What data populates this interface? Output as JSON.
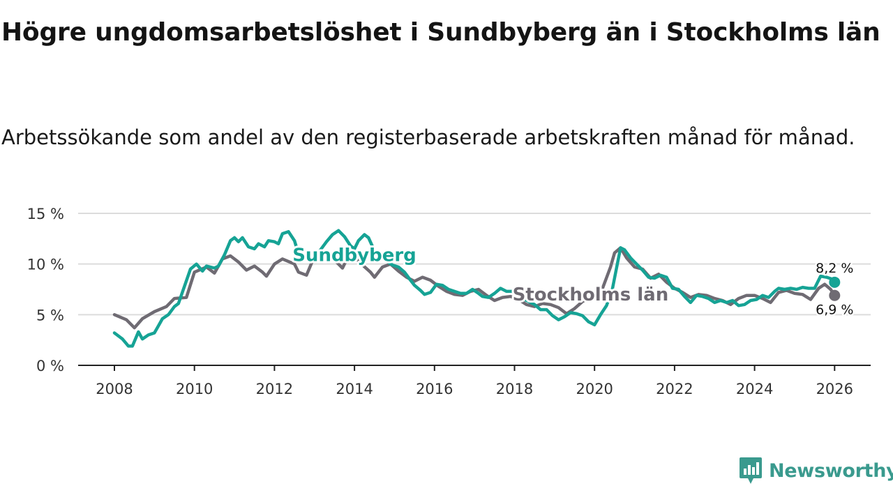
{
  "header": {
    "title": "Högre ungdomsarbetslöshet i Sundbyberg än i Stockholms län",
    "subtitle": "Arbetssökande som andel av den registerbaserade arbetskraften månad för månad."
  },
  "brand": {
    "name": "Newsworthy",
    "icon": "newsworthy-logo-icon"
  },
  "colors": {
    "sundbyberg": "#16a395",
    "stockholm": "#6f6b73",
    "grid": "#dcdcdc",
    "axis": "#222222"
  },
  "chart_data": {
    "type": "line",
    "title": "Högre ungdomsarbetslöshet i Sundbyberg än i Stockholms län",
    "xlabel": "",
    "ylabel": "",
    "xlim": [
      2007.6,
      2026.9
    ],
    "ylim": [
      0,
      15
    ],
    "x_ticks": [
      {
        "value": 2008,
        "label": "2008"
      },
      {
        "value": 2010,
        "label": "2010"
      },
      {
        "value": 2012,
        "label": "2012"
      },
      {
        "value": 2014,
        "label": "2014"
      },
      {
        "value": 2016,
        "label": "2016"
      },
      {
        "value": 2018,
        "label": "2018"
      },
      {
        "value": 2020,
        "label": "2020"
      },
      {
        "value": 2022,
        "label": "2022"
      },
      {
        "value": 2024,
        "label": "2024"
      },
      {
        "value": 2026,
        "label": "2026"
      }
    ],
    "y_ticks": [
      {
        "value": 0,
        "label": "0 %"
      },
      {
        "value": 5,
        "label": "5 %"
      },
      {
        "value": 10,
        "label": "10 %"
      },
      {
        "value": 15,
        "label": "15 %"
      }
    ],
    "series": [
      {
        "name": "Stockholms län",
        "label": "Stockholms län",
        "end_label": "6,9 %",
        "points": [
          [
            2008.0,
            5.0
          ],
          [
            2008.3,
            4.5
          ],
          [
            2008.5,
            3.7
          ],
          [
            2008.7,
            4.6
          ],
          [
            2009.0,
            5.3
          ],
          [
            2009.3,
            5.8
          ],
          [
            2009.5,
            6.6
          ],
          [
            2009.8,
            6.7
          ],
          [
            2010.0,
            9.2
          ],
          [
            2010.3,
            9.7
          ],
          [
            2010.5,
            9.1
          ],
          [
            2010.7,
            10.5
          ],
          [
            2010.9,
            10.8
          ],
          [
            2011.1,
            10.2
          ],
          [
            2011.3,
            9.4
          ],
          [
            2011.5,
            9.8
          ],
          [
            2011.7,
            9.2
          ],
          [
            2011.8,
            8.8
          ],
          [
            2012.0,
            10.0
          ],
          [
            2012.2,
            10.5
          ],
          [
            2012.5,
            10.0
          ],
          [
            2012.6,
            9.2
          ],
          [
            2012.8,
            8.9
          ],
          [
            2012.95,
            10.3
          ],
          [
            2013.2,
            10.8
          ],
          [
            2013.5,
            10.4
          ],
          [
            2013.7,
            9.6
          ],
          [
            2013.8,
            10.4
          ],
          [
            2014.0,
            10.7
          ],
          [
            2014.2,
            9.9
          ],
          [
            2014.4,
            9.2
          ],
          [
            2014.5,
            8.7
          ],
          [
            2014.7,
            9.7
          ],
          [
            2014.9,
            10.0
          ],
          [
            2015.1,
            9.3
          ],
          [
            2015.3,
            8.7
          ],
          [
            2015.5,
            8.3
          ],
          [
            2015.7,
            8.7
          ],
          [
            2015.9,
            8.4
          ],
          [
            2016.1,
            7.8
          ],
          [
            2016.3,
            7.3
          ],
          [
            2016.5,
            7.0
          ],
          [
            2016.7,
            6.9
          ],
          [
            2016.9,
            7.3
          ],
          [
            2017.1,
            7.5
          ],
          [
            2017.3,
            6.9
          ],
          [
            2017.5,
            6.4
          ],
          [
            2017.7,
            6.7
          ],
          [
            2017.9,
            6.8
          ],
          [
            2018.1,
            6.5
          ],
          [
            2018.3,
            6.0
          ],
          [
            2018.5,
            5.8
          ],
          [
            2018.7,
            6.1
          ],
          [
            2018.9,
            6.0
          ],
          [
            2019.1,
            5.7
          ],
          [
            2019.3,
            5.1
          ],
          [
            2019.5,
            5.6
          ],
          [
            2019.7,
            6.3
          ],
          [
            2019.9,
            6.7
          ],
          [
            2020.1,
            7.0
          ],
          [
            2020.2,
            7.6
          ],
          [
            2020.4,
            9.7
          ],
          [
            2020.5,
            11.1
          ],
          [
            2020.65,
            11.6
          ],
          [
            2020.8,
            10.6
          ],
          [
            2021.0,
            9.7
          ],
          [
            2021.2,
            9.5
          ],
          [
            2021.4,
            8.6
          ],
          [
            2021.6,
            9.0
          ],
          [
            2021.8,
            8.2
          ],
          [
            2022.0,
            7.6
          ],
          [
            2022.2,
            7.2
          ],
          [
            2022.4,
            6.7
          ],
          [
            2022.6,
            7.0
          ],
          [
            2022.8,
            6.9
          ],
          [
            2023.0,
            6.6
          ],
          [
            2023.2,
            6.4
          ],
          [
            2023.4,
            6.0
          ],
          [
            2023.6,
            6.6
          ],
          [
            2023.8,
            6.9
          ],
          [
            2024.0,
            6.9
          ],
          [
            2024.2,
            6.6
          ],
          [
            2024.4,
            6.2
          ],
          [
            2024.6,
            7.2
          ],
          [
            2024.8,
            7.4
          ],
          [
            2025.0,
            7.1
          ],
          [
            2025.2,
            7.0
          ],
          [
            2025.4,
            6.5
          ],
          [
            2025.6,
            7.6
          ],
          [
            2025.75,
            8.0
          ],
          [
            2025.9,
            7.5
          ],
          [
            2026.0,
            6.9
          ]
        ]
      },
      {
        "name": "Sundbyberg",
        "label": "Sundbyberg",
        "end_label": "8,2 %",
        "points": [
          [
            2008.0,
            3.2
          ],
          [
            2008.2,
            2.6
          ],
          [
            2008.35,
            1.9
          ],
          [
            2008.45,
            1.9
          ],
          [
            2008.6,
            3.3
          ],
          [
            2008.7,
            2.6
          ],
          [
            2008.85,
            3.0
          ],
          [
            2009.0,
            3.2
          ],
          [
            2009.1,
            3.9
          ],
          [
            2009.2,
            4.6
          ],
          [
            2009.35,
            5.0
          ],
          [
            2009.5,
            5.8
          ],
          [
            2009.6,
            6.1
          ],
          [
            2009.75,
            7.8
          ],
          [
            2009.9,
            9.5
          ],
          [
            2010.05,
            10.0
          ],
          [
            2010.2,
            9.3
          ],
          [
            2010.3,
            9.8
          ],
          [
            2010.5,
            9.6
          ],
          [
            2010.6,
            9.8
          ],
          [
            2010.75,
            10.9
          ],
          [
            2010.9,
            12.3
          ],
          [
            2011.0,
            12.6
          ],
          [
            2011.1,
            12.2
          ],
          [
            2011.2,
            12.6
          ],
          [
            2011.35,
            11.7
          ],
          [
            2011.5,
            11.5
          ],
          [
            2011.6,
            12.0
          ],
          [
            2011.75,
            11.7
          ],
          [
            2011.85,
            12.3
          ],
          [
            2012.0,
            12.2
          ],
          [
            2012.1,
            12.0
          ],
          [
            2012.2,
            13.0
          ],
          [
            2012.35,
            13.2
          ],
          [
            2012.5,
            12.3
          ],
          [
            2012.6,
            11.0
          ],
          [
            2012.75,
            10.6
          ],
          [
            2012.9,
            10.8
          ],
          [
            2013.0,
            10.6
          ],
          [
            2013.15,
            11.4
          ],
          [
            2013.3,
            12.2
          ],
          [
            2013.45,
            12.9
          ],
          [
            2013.6,
            13.3
          ],
          [
            2013.75,
            12.7
          ],
          [
            2013.9,
            11.8
          ],
          [
            2014.0,
            11.5
          ],
          [
            2014.1,
            12.3
          ],
          [
            2014.25,
            12.9
          ],
          [
            2014.35,
            12.6
          ],
          [
            2014.5,
            11.3
          ],
          [
            2014.65,
            10.6
          ],
          [
            2014.8,
            10.3
          ],
          [
            2014.95,
            9.9
          ],
          [
            2015.1,
            9.7
          ],
          [
            2015.25,
            9.2
          ],
          [
            2015.4,
            8.4
          ],
          [
            2015.5,
            7.9
          ],
          [
            2015.65,
            7.4
          ],
          [
            2015.75,
            7.0
          ],
          [
            2015.9,
            7.2
          ],
          [
            2016.05,
            8.0
          ],
          [
            2016.2,
            7.9
          ],
          [
            2016.35,
            7.5
          ],
          [
            2016.5,
            7.3
          ],
          [
            2016.65,
            7.1
          ],
          [
            2016.8,
            7.1
          ],
          [
            2016.95,
            7.5
          ],
          [
            2017.1,
            7.1
          ],
          [
            2017.2,
            6.8
          ],
          [
            2017.35,
            6.7
          ],
          [
            2017.5,
            7.1
          ],
          [
            2017.65,
            7.6
          ],
          [
            2017.8,
            7.3
          ],
          [
            2017.95,
            7.3
          ],
          [
            2018.1,
            6.9
          ],
          [
            2018.2,
            6.6
          ],
          [
            2018.35,
            6.3
          ],
          [
            2018.5,
            6.0
          ],
          [
            2018.65,
            5.5
          ],
          [
            2018.8,
            5.5
          ],
          [
            2018.95,
            4.9
          ],
          [
            2019.1,
            4.5
          ],
          [
            2019.25,
            4.8
          ],
          [
            2019.4,
            5.2
          ],
          [
            2019.55,
            5.1
          ],
          [
            2019.7,
            4.9
          ],
          [
            2019.85,
            4.3
          ],
          [
            2020.0,
            4.0
          ],
          [
            2020.15,
            5.0
          ],
          [
            2020.3,
            5.9
          ],
          [
            2020.45,
            7.6
          ],
          [
            2020.55,
            9.6
          ],
          [
            2020.65,
            11.6
          ],
          [
            2020.75,
            11.4
          ],
          [
            2020.9,
            10.6
          ],
          [
            2021.05,
            10.0
          ],
          [
            2021.2,
            9.4
          ],
          [
            2021.35,
            8.7
          ],
          [
            2021.5,
            8.6
          ],
          [
            2021.65,
            8.9
          ],
          [
            2021.8,
            8.7
          ],
          [
            2021.95,
            7.6
          ],
          [
            2022.1,
            7.5
          ],
          [
            2022.25,
            6.8
          ],
          [
            2022.4,
            6.2
          ],
          [
            2022.55,
            6.9
          ],
          [
            2022.7,
            6.8
          ],
          [
            2022.85,
            6.6
          ],
          [
            2023.0,
            6.2
          ],
          [
            2023.15,
            6.4
          ],
          [
            2023.3,
            6.2
          ],
          [
            2023.45,
            6.4
          ],
          [
            2023.6,
            5.9
          ],
          [
            2023.75,
            6.0
          ],
          [
            2023.9,
            6.4
          ],
          [
            2024.05,
            6.5
          ],
          [
            2024.2,
            6.9
          ],
          [
            2024.35,
            6.7
          ],
          [
            2024.5,
            7.3
          ],
          [
            2024.6,
            7.6
          ],
          [
            2024.75,
            7.5
          ],
          [
            2024.9,
            7.6
          ],
          [
            2025.05,
            7.5
          ],
          [
            2025.2,
            7.7
          ],
          [
            2025.35,
            7.6
          ],
          [
            2025.5,
            7.6
          ],
          [
            2025.65,
            8.8
          ],
          [
            2025.8,
            8.7
          ],
          [
            2025.95,
            8.5
          ],
          [
            2026.0,
            8.2
          ]
        ]
      }
    ]
  }
}
